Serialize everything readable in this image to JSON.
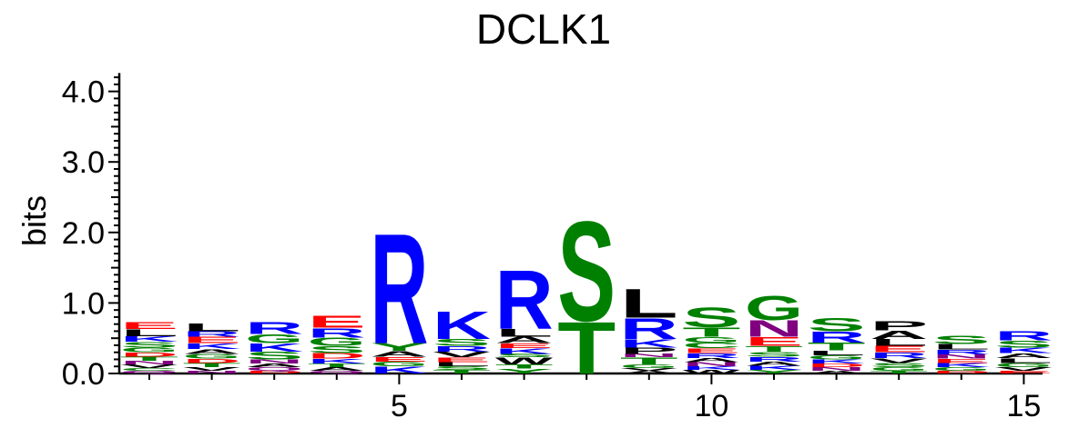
{
  "chart_data": {
    "type": "sequence-logo",
    "title": "DCLK1",
    "ylabel": "bits",
    "xlabel": "",
    "ylim": [
      0,
      4.3
    ],
    "y_ticks": [
      {
        "value": 0.0,
        "label": "0.0"
      },
      {
        "value": 1.0,
        "label": "1.0"
      },
      {
        "value": 2.0,
        "label": "2.0"
      },
      {
        "value": 3.0,
        "label": "3.0"
      },
      {
        "value": 4.0,
        "label": "4.0"
      }
    ],
    "x_ticks": [
      {
        "position": 5,
        "label": "5"
      },
      {
        "position": 10,
        "label": "10"
      },
      {
        "position": 15,
        "label": "15"
      }
    ],
    "colors": {
      "basic": "#0000ff",
      "acidic": "#ff0000",
      "polar": "#008000",
      "hydrophobic": "#000000",
      "amide": "#800080"
    },
    "positions": [
      {
        "pos": 1,
        "letters": [
          {
            "aa": "Q",
            "h": 0.04,
            "c": "amide"
          },
          {
            "aa": "C",
            "h": 0.04,
            "c": "polar"
          },
          {
            "aa": "V",
            "h": 0.05,
            "c": "hydrophobic"
          },
          {
            "aa": "N",
            "h": 0.05,
            "c": "amide"
          },
          {
            "aa": "T",
            "h": 0.06,
            "c": "polar"
          },
          {
            "aa": "D",
            "h": 0.06,
            "c": "acidic"
          },
          {
            "aa": "G",
            "h": 0.07,
            "c": "polar"
          },
          {
            "aa": "S",
            "h": 0.08,
            "c": "polar"
          },
          {
            "aa": "K",
            "h": 0.08,
            "c": "basic"
          },
          {
            "aa": "L",
            "h": 0.1,
            "c": "hydrophobic"
          },
          {
            "aa": "E",
            "h": 0.1,
            "c": "acidic"
          }
        ]
      },
      {
        "pos": 2,
        "letters": [
          {
            "aa": "N",
            "h": 0.04,
            "c": "amide"
          },
          {
            "aa": "V",
            "h": 0.05,
            "c": "hydrophobic"
          },
          {
            "aa": "T",
            "h": 0.06,
            "c": "polar"
          },
          {
            "aa": "D",
            "h": 0.06,
            "c": "acidic"
          },
          {
            "aa": "G",
            "h": 0.07,
            "c": "polar"
          },
          {
            "aa": "A",
            "h": 0.07,
            "c": "hydrophobic"
          },
          {
            "aa": "K",
            "h": 0.08,
            "c": "basic"
          },
          {
            "aa": "E",
            "h": 0.09,
            "c": "acidic"
          },
          {
            "aa": "R",
            "h": 0.08,
            "c": "basic"
          },
          {
            "aa": "L",
            "h": 0.11,
            "c": "hydrophobic"
          }
        ]
      },
      {
        "pos": 3,
        "letters": [
          {
            "aa": "D",
            "h": 0.04,
            "c": "acidic"
          },
          {
            "aa": "Q",
            "h": 0.05,
            "c": "amide"
          },
          {
            "aa": "A",
            "h": 0.05,
            "c": "hydrophobic"
          },
          {
            "aa": "N",
            "h": 0.06,
            "c": "amide"
          },
          {
            "aa": "S",
            "h": 0.11,
            "c": "polar"
          },
          {
            "aa": "K",
            "h": 0.12,
            "c": "basic"
          },
          {
            "aa": "G",
            "h": 0.13,
            "c": "polar"
          },
          {
            "aa": "R",
            "h": 0.17,
            "c": "basic"
          }
        ]
      },
      {
        "pos": 4,
        "letters": [
          {
            "aa": "Q",
            "h": 0.04,
            "c": "amide"
          },
          {
            "aa": "A",
            "h": 0.05,
            "c": "hydrophobic"
          },
          {
            "aa": "T",
            "h": 0.05,
            "c": "polar"
          },
          {
            "aa": "K",
            "h": 0.07,
            "c": "basic"
          },
          {
            "aa": "D",
            "h": 0.08,
            "c": "acidic"
          },
          {
            "aa": "S",
            "h": 0.1,
            "c": "polar"
          },
          {
            "aa": "G",
            "h": 0.12,
            "c": "polar"
          },
          {
            "aa": "R",
            "h": 0.14,
            "c": "basic"
          },
          {
            "aa": "E",
            "h": 0.17,
            "c": "acidic"
          }
        ]
      },
      {
        "pos": 5,
        "letters": [
          {
            "aa": "K",
            "h": 0.1,
            "c": "basic"
          },
          {
            "aa": "G",
            "h": 0.07,
            "c": "polar"
          },
          {
            "aa": "E",
            "h": 0.07,
            "c": "acidic"
          },
          {
            "aa": "A",
            "h": 0.08,
            "c": "hydrophobic"
          },
          {
            "aa": "Y",
            "h": 0.11,
            "c": "polar"
          },
          {
            "aa": "R",
            "h": 1.6,
            "c": "basic"
          }
        ]
      },
      {
        "pos": 6,
        "letters": [
          {
            "aa": "T",
            "h": 0.05,
            "c": "polar"
          },
          {
            "aa": "S",
            "h": 0.05,
            "c": "polar"
          },
          {
            "aa": "L",
            "h": 0.06,
            "c": "hydrophobic"
          },
          {
            "aa": "E",
            "h": 0.07,
            "c": "acidic"
          },
          {
            "aa": "V",
            "h": 0.08,
            "c": "hydrophobic"
          },
          {
            "aa": "R",
            "h": 0.08,
            "c": "basic"
          },
          {
            "aa": "S",
            "h": 0.1,
            "c": "polar"
          },
          {
            "aa": "K",
            "h": 0.4,
            "c": "basic"
          }
        ]
      },
      {
        "pos": 7,
        "letters": [
          {
            "aa": "Y",
            "h": 0.07,
            "c": "polar"
          },
          {
            "aa": "T",
            "h": 0.06,
            "c": "polar"
          },
          {
            "aa": "W",
            "h": 0.1,
            "c": "hydrophobic"
          },
          {
            "aa": "S",
            "h": 0.05,
            "c": "polar"
          },
          {
            "aa": "K",
            "h": 0.08,
            "c": "basic"
          },
          {
            "aa": "E",
            "h": 0.07,
            "c": "acidic"
          },
          {
            "aa": "A",
            "h": 0.09,
            "c": "hydrophobic"
          },
          {
            "aa": "L",
            "h": 0.11,
            "c": "hydrophobic"
          },
          {
            "aa": "R",
            "h": 0.86,
            "c": "basic"
          }
        ]
      },
      {
        "pos": 8,
        "letters": [
          {
            "aa": "T",
            "h": 0.75,
            "c": "polar"
          },
          {
            "aa": "S",
            "h": 1.45,
            "c": "polar"
          }
        ]
      },
      {
        "pos": 9,
        "letters": [
          {
            "aa": "A",
            "h": 0.04,
            "c": "hydrophobic"
          },
          {
            "aa": "V",
            "h": 0.04,
            "c": "hydrophobic"
          },
          {
            "aa": "G",
            "h": 0.05,
            "c": "polar"
          },
          {
            "aa": "T",
            "h": 0.1,
            "c": "polar"
          },
          {
            "aa": "N",
            "h": 0.05,
            "c": "amide"
          },
          {
            "aa": "P",
            "h": 0.09,
            "c": "hydrophobic"
          },
          {
            "aa": "K",
            "h": 0.12,
            "c": "basic"
          },
          {
            "aa": "R",
            "h": 0.3,
            "c": "basic"
          },
          {
            "aa": "L",
            "h": 0.42,
            "c": "hydrophobic"
          }
        ]
      },
      {
        "pos": 10,
        "letters": [
          {
            "aa": "W",
            "h": 0.05,
            "c": "hydrophobic"
          },
          {
            "aa": "K",
            "h": 0.05,
            "c": "basic"
          },
          {
            "aa": "N",
            "h": 0.06,
            "c": "amide"
          },
          {
            "aa": "A",
            "h": 0.06,
            "c": "hydrophobic"
          },
          {
            "aa": "R",
            "h": 0.07,
            "c": "basic"
          },
          {
            "aa": "E",
            "h": 0.07,
            "c": "acidic"
          },
          {
            "aa": "C",
            "h": 0.08,
            "c": "polar"
          },
          {
            "aa": "G",
            "h": 0.08,
            "c": "polar"
          },
          {
            "aa": "T",
            "h": 0.14,
            "c": "polar"
          },
          {
            "aa": "S",
            "h": 0.29,
            "c": "polar"
          }
        ]
      },
      {
        "pos": 11,
        "letters": [
          {
            "aa": "Y",
            "h": 0.05,
            "c": "polar"
          },
          {
            "aa": "K",
            "h": 0.06,
            "c": "basic"
          },
          {
            "aa": "A",
            "h": 0.06,
            "c": "hydrophobic"
          },
          {
            "aa": "R",
            "h": 0.07,
            "c": "basic"
          },
          {
            "aa": "S",
            "h": 0.07,
            "c": "polar"
          },
          {
            "aa": "T",
            "h": 0.08,
            "c": "polar"
          },
          {
            "aa": "E",
            "h": 0.13,
            "c": "acidic"
          },
          {
            "aa": "N",
            "h": 0.24,
            "c": "amide"
          },
          {
            "aa": "G",
            "h": 0.35,
            "c": "polar"
          }
        ]
      },
      {
        "pos": 12,
        "letters": [
          {
            "aa": "A",
            "h": 0.04,
            "c": "hydrophobic"
          },
          {
            "aa": "N",
            "h": 0.05,
            "c": "amide"
          },
          {
            "aa": "D",
            "h": 0.05,
            "c": "acidic"
          },
          {
            "aa": "K",
            "h": 0.06,
            "c": "basic"
          },
          {
            "aa": "G",
            "h": 0.06,
            "c": "polar"
          },
          {
            "aa": "L",
            "h": 0.07,
            "c": "hydrophobic"
          },
          {
            "aa": "T",
            "h": 0.11,
            "c": "polar"
          },
          {
            "aa": "R",
            "h": 0.16,
            "c": "basic"
          },
          {
            "aa": "S",
            "h": 0.2,
            "c": "polar"
          }
        ]
      },
      {
        "pos": 13,
        "letters": [
          {
            "aa": "T",
            "h": 0.04,
            "c": "polar"
          },
          {
            "aa": "G",
            "h": 0.05,
            "c": "polar"
          },
          {
            "aa": "S",
            "h": 0.06,
            "c": "polar"
          },
          {
            "aa": "V",
            "h": 0.07,
            "c": "hydrophobic"
          },
          {
            "aa": "R",
            "h": 0.08,
            "c": "basic"
          },
          {
            "aa": "E",
            "h": 0.09,
            "c": "acidic"
          },
          {
            "aa": "L",
            "h": 0.1,
            "c": "hydrophobic"
          },
          {
            "aa": "A",
            "h": 0.12,
            "c": "hydrophobic"
          },
          {
            "aa": "P",
            "h": 0.14,
            "c": "hydrophobic"
          }
        ]
      },
      {
        "pos": 14,
        "letters": [
          {
            "aa": "D",
            "h": 0.04,
            "c": "acidic"
          },
          {
            "aa": "G",
            "h": 0.05,
            "c": "polar"
          },
          {
            "aa": "K",
            "h": 0.06,
            "c": "basic"
          },
          {
            "aa": "E",
            "h": 0.06,
            "c": "acidic"
          },
          {
            "aa": "N",
            "h": 0.06,
            "c": "amide"
          },
          {
            "aa": "R",
            "h": 0.07,
            "c": "basic"
          },
          {
            "aa": "L",
            "h": 0.08,
            "c": "hydrophobic"
          },
          {
            "aa": "S",
            "h": 0.12,
            "c": "polar"
          }
        ]
      },
      {
        "pos": 15,
        "letters": [
          {
            "aa": "E",
            "h": 0.04,
            "c": "acidic"
          },
          {
            "aa": "V",
            "h": 0.05,
            "c": "hydrophobic"
          },
          {
            "aa": "G",
            "h": 0.06,
            "c": "polar"
          },
          {
            "aa": "L",
            "h": 0.07,
            "c": "hydrophobic"
          },
          {
            "aa": "A",
            "h": 0.07,
            "c": "hydrophobic"
          },
          {
            "aa": "K",
            "h": 0.08,
            "c": "basic"
          },
          {
            "aa": "S",
            "h": 0.1,
            "c": "polar"
          },
          {
            "aa": "R",
            "h": 0.14,
            "c": "basic"
          }
        ]
      }
    ]
  }
}
